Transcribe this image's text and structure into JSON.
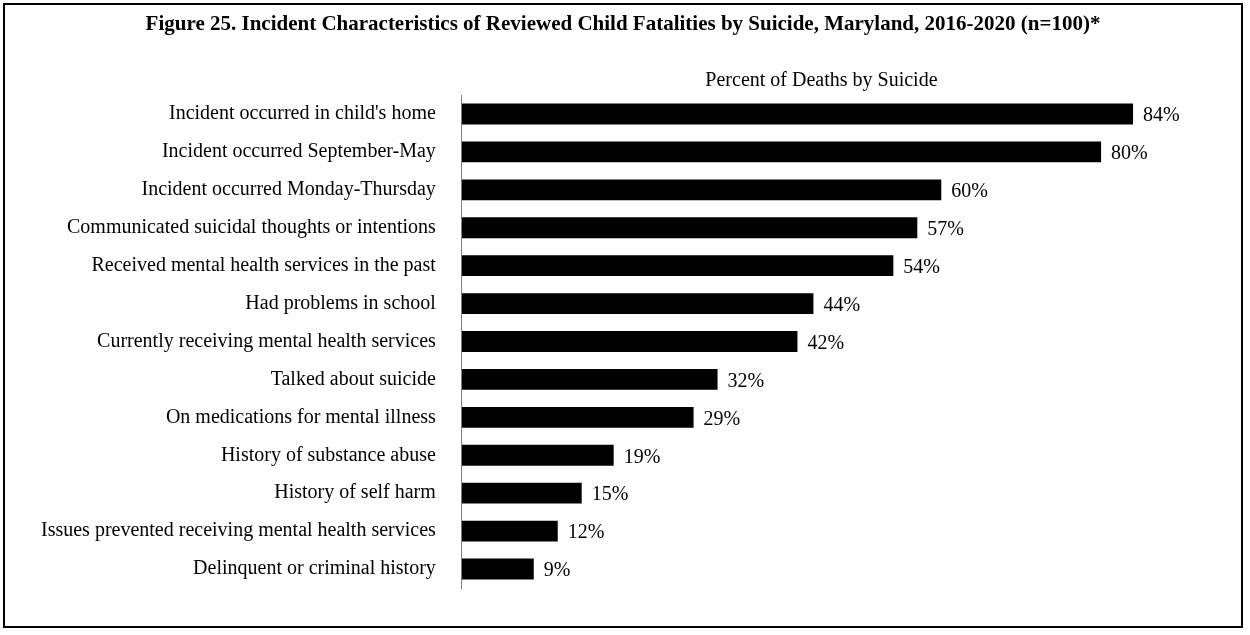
{
  "chart_data": {
    "type": "bar",
    "orientation": "horizontal",
    "title": "Figure 25. Incident Characteristics of Reviewed Child Fatalities by Suicide, Maryland, 2016-2020 (n=100)*",
    "xlabel": "Percent of Deaths by Suicide",
    "categories": [
      "Incident occurred in child's home",
      "Incident occurred September-May",
      "Incident occurred Monday-Thursday",
      "Communicated suicidal thoughts or intentions",
      "Received mental health services in the past",
      "Had problems in school",
      "Currently receiving mental health services",
      "Talked about suicide",
      "On medications for mental illness",
      "History of substance abuse",
      "History of self harm",
      "Issues prevented receiving mental health services",
      "Delinquent or criminal history"
    ],
    "values": [
      84,
      80,
      60,
      57,
      54,
      44,
      42,
      32,
      29,
      19,
      15,
      12,
      9
    ],
    "value_labels": [
      "84%",
      "80%",
      "60%",
      "57%",
      "54%",
      "44%",
      "42%",
      "32%",
      "29%",
      "19%",
      "15%",
      "12%",
      "9%"
    ],
    "color": "#000000",
    "grid": false,
    "legend": false
  }
}
